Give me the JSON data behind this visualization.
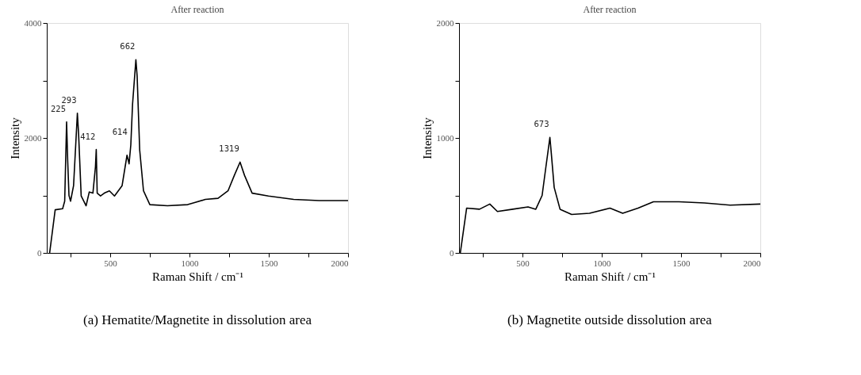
{
  "chart_data": [
    {
      "type": "line",
      "title": "After reaction",
      "xlabel": "Raman Shift / cm⁻¹",
      "ylabel": "Intensity",
      "xlim": [
        100,
        2000
      ],
      "ylim": [
        0,
        4000
      ],
      "xticks": [
        {
          "value": 250,
          "label": null
        },
        500,
        {
          "value": 750,
          "label": null
        },
        1000,
        {
          "value": 1250,
          "label": null
        },
        1500,
        {
          "value": 1750,
          "label": null
        },
        2000
      ],
      "yticks": [
        0,
        {
          "value": 1000,
          "label": null
        },
        2000,
        {
          "value": 3000,
          "label": null
        },
        4000
      ],
      "grid": false,
      "series": [
        {
          "color": "#000000",
          "x": [
            118,
            153,
            200,
            213,
            225,
            232,
            240,
            250,
            269,
            293,
            301,
            317,
            348,
            368,
            391,
            407,
            412,
            418,
            439,
            463,
            495,
            527,
            575,
            606,
            619,
            630,
            641,
            662,
            670,
            686,
            710,
            750,
            861,
            989,
            1100,
            1180,
            1243,
            1283,
            1319,
            1347,
            1395,
            1498,
            1657,
            1817,
            2000
          ],
          "values": [
            0,
            750,
            770,
            900,
            2280,
            1600,
            1000,
            900,
            1170,
            2430,
            2050,
            990,
            820,
            1060,
            1040,
            1500,
            1800,
            1040,
            990,
            1040,
            1080,
            990,
            1170,
            1700,
            1550,
            1880,
            2590,
            3360,
            3070,
            1790,
            1080,
            840,
            820,
            840,
            930,
            950,
            1080,
            1350,
            1580,
            1350,
            1040,
            990,
            930,
            910,
            910
          ]
        }
      ],
      "annotations": [
        {
          "text": "225",
          "x": 225,
          "y": 2280
        },
        {
          "text": "293",
          "x": 293,
          "y": 2430
        },
        {
          "text": "412",
          "x": 412,
          "y": 1800
        },
        {
          "text": "614",
          "x": 614,
          "y": 1880
        },
        {
          "text": "662",
          "x": 662,
          "y": 3360
        },
        {
          "text": "1319",
          "x": 1319,
          "y": 1580
        },
        "(a) Hematite/Magnetite in dissolution area"
      ]
    },
    {
      "type": "line",
      "title": "After reaction",
      "xlabel": "Raman Shift / cm⁻¹",
      "ylabel": "Intensity",
      "xlim": [
        100,
        2000
      ],
      "ylim": [
        0,
        2000
      ],
      "xticks": [
        {
          "value": 250,
          "label": null
        },
        500,
        {
          "value": 750,
          "label": null
        },
        1000,
        {
          "value": 1250,
          "label": null
        },
        1500,
        {
          "value": 1750,
          "label": null
        },
        2000
      ],
      "yticks": [
        0,
        {
          "value": 500,
          "label": null
        },
        1000,
        {
          "value": 1500,
          "label": null
        },
        2000
      ],
      "grid": false,
      "series": [
        {
          "color": "#000000",
          "x": [
            108,
            148,
            229,
            294,
            342,
            439,
            535,
            584,
            624,
            648,
            673,
            681,
            700,
            737,
            810,
            923,
            1052,
            1132,
            1229,
            1326,
            1487,
            1648,
            1810,
            2000
          ],
          "values": [
            0,
            390,
            380,
            425,
            360,
            380,
            400,
            380,
            500,
            750,
            1005,
            880,
            570,
            380,
            335,
            345,
            390,
            345,
            390,
            445,
            445,
            435,
            415,
            425
          ]
        }
      ],
      "annotations": [
        {
          "text": "673",
          "x": 673,
          "y": 1005
        },
        "(b) Magnetite outside dissolution area"
      ]
    }
  ]
}
